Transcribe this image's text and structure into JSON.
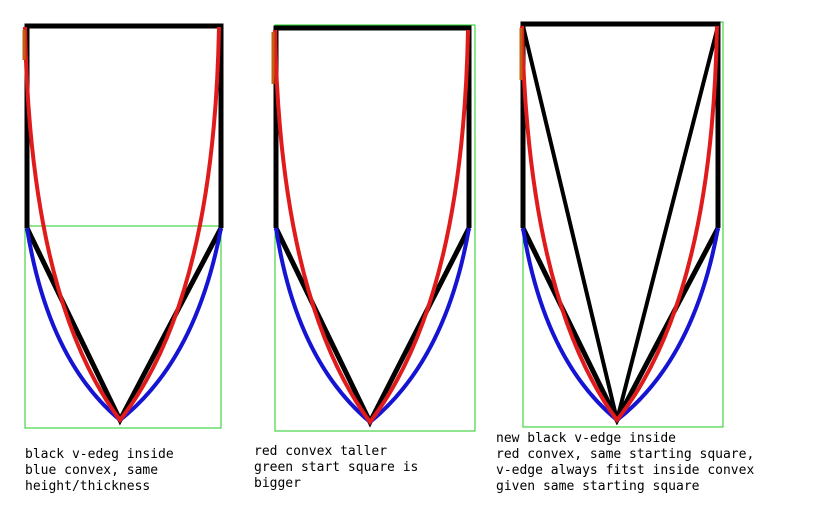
{
  "colors": {
    "black_edge": "#000000",
    "red_convex": "#e01b1b",
    "blue_convex": "#1414d2",
    "green_square": "#22cc22",
    "orange_tip": "#c06010"
  },
  "panels": [
    {
      "caption_lines": [
        "black v-edeg inside",
        "blue convex, same",
        "height/thickness"
      ]
    },
    {
      "caption_lines": [
        "red convex taller",
        "green start square is",
        "bigger"
      ]
    },
    {
      "caption_lines": [
        "new black v-edge inside",
        "red convex, same starting square,",
        "v-edge always fitst inside convex",
        "given same starting square"
      ]
    }
  ]
}
